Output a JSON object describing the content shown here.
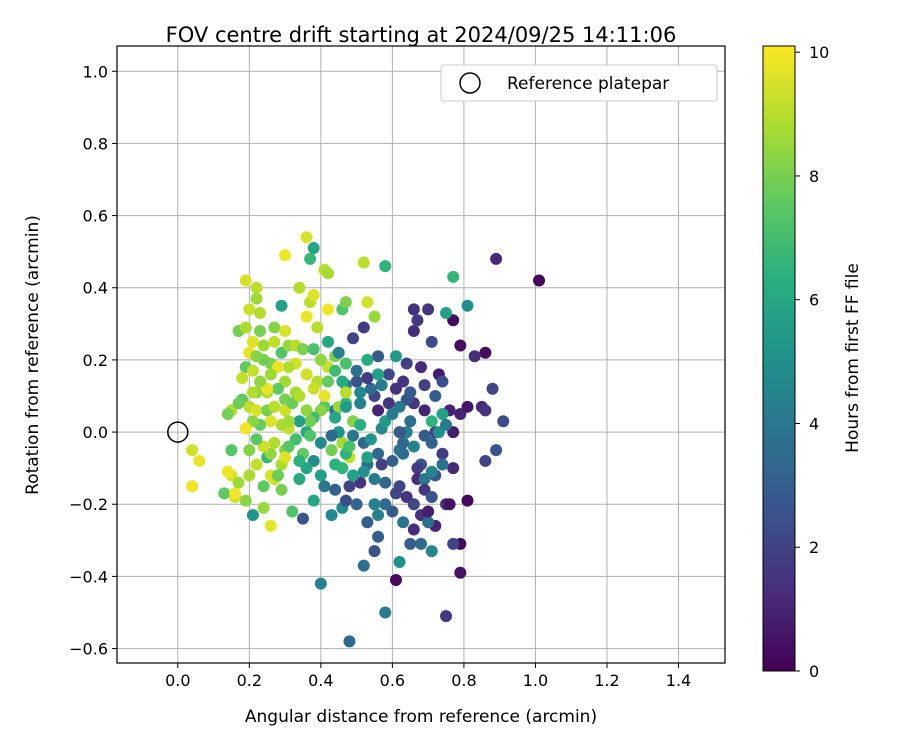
{
  "chart_data": {
    "type": "scatter",
    "title": "FOV centre drift starting at 2024/09/25 14:11:06",
    "xlabel": "Angular distance from reference (arcmin)",
    "ylabel": "Rotation from reference (arcmin)",
    "xlim": [
      -0.17,
      1.53
    ],
    "ylim": [
      -0.64,
      1.07
    ],
    "xticks": [
      "0.0",
      "0.2",
      "0.4",
      "0.6",
      "0.8",
      "1.0",
      "1.2",
      "1.4"
    ],
    "yticks": [
      "−0.6",
      "−0.4",
      "−0.2",
      "0.0",
      "0.2",
      "0.4",
      "0.6",
      "0.8",
      "1.0"
    ],
    "grid": true,
    "legend": {
      "position": "top-right",
      "entries": [
        "Reference platepar"
      ]
    },
    "colorbar": {
      "label": "Hours from first FF file",
      "range": [
        0,
        10.1
      ],
      "ticks": [
        "0",
        "2",
        "4",
        "6",
        "8",
        "10"
      ],
      "colormap": "viridis"
    },
    "reference_point": {
      "x": 0.0,
      "y": 0.0
    },
    "points": [
      [
        1.01,
        0.42,
        0.1
      ],
      [
        0.89,
        0.48,
        1.2
      ],
      [
        0.77,
        0.31,
        0.3
      ],
      [
        0.79,
        0.24,
        0.4
      ],
      [
        0.86,
        0.22,
        0.3
      ],
      [
        0.83,
        0.21,
        1.3
      ],
      [
        0.73,
        0.16,
        0.7
      ],
      [
        0.76,
        0.06,
        1.0
      ],
      [
        0.81,
        0.07,
        0.6
      ],
      [
        0.85,
        0.07,
        1.1
      ],
      [
        0.88,
        0.12,
        2.0
      ],
      [
        0.91,
        0.03,
        2.3
      ],
      [
        0.86,
        0.06,
        1.5
      ],
      [
        0.79,
        0.05,
        1.0
      ],
      [
        0.77,
        0.0,
        0.8
      ],
      [
        0.89,
        -0.05,
        2.6
      ],
      [
        0.86,
        -0.08,
        2.0
      ],
      [
        0.81,
        -0.19,
        0.2
      ],
      [
        0.79,
        -0.31,
        0.2
      ],
      [
        0.79,
        -0.39,
        0.5
      ],
      [
        0.77,
        -0.31,
        2.0
      ],
      [
        0.75,
        -0.51,
        1.6
      ],
      [
        0.61,
        -0.41,
        0.3
      ],
      [
        0.72,
        -0.26,
        1.0
      ],
      [
        0.75,
        -0.2,
        1.4
      ],
      [
        0.68,
        -0.23,
        1.4
      ],
      [
        0.7,
        -0.25,
        3.7
      ],
      [
        0.71,
        -0.33,
        4.6
      ],
      [
        0.68,
        -0.31,
        3.4
      ],
      [
        0.65,
        -0.31,
        3.0
      ],
      [
        0.66,
        -0.27,
        1.3
      ],
      [
        0.72,
        -0.12,
        2.5
      ],
      [
        0.74,
        -0.06,
        1.8
      ],
      [
        0.77,
        -0.1,
        1.1
      ],
      [
        0.76,
        -0.2,
        0.5
      ],
      [
        0.7,
        -0.22,
        0.8
      ],
      [
        0.64,
        -0.18,
        1.5
      ],
      [
        0.61,
        -0.17,
        2.1
      ],
      [
        0.58,
        -0.2,
        3.5
      ],
      [
        0.55,
        -0.2,
        4.4
      ],
      [
        0.56,
        -0.29,
        3.0
      ],
      [
        0.55,
        -0.33,
        2.6
      ],
      [
        0.58,
        -0.5,
        4.1
      ],
      [
        0.62,
        -0.36,
        5.0
      ],
      [
        0.48,
        -0.58,
        3.5
      ],
      [
        0.52,
        -0.37,
        3.6
      ],
      [
        0.4,
        -0.42,
        4.3
      ],
      [
        0.51,
        -0.14,
        1.4
      ],
      [
        0.48,
        -0.15,
        2.0
      ],
      [
        0.46,
        -0.21,
        4.8
      ],
      [
        0.47,
        -0.19,
        2.4
      ],
      [
        0.43,
        -0.23,
        4.6
      ],
      [
        0.38,
        -0.19,
        5.9
      ],
      [
        0.35,
        -0.24,
        2.6
      ],
      [
        0.32,
        -0.22,
        7.3
      ],
      [
        0.29,
        -0.16,
        8.0
      ],
      [
        0.27,
        -0.13,
        9.3
      ],
      [
        0.26,
        -0.12,
        9.5
      ],
      [
        0.24,
        -0.21,
        8.5
      ],
      [
        0.26,
        -0.26,
        9.7
      ],
      [
        0.21,
        -0.23,
        5.2
      ],
      [
        0.19,
        -0.19,
        8.3
      ],
      [
        0.16,
        -0.18,
        9.4
      ],
      [
        0.13,
        -0.17,
        7.6
      ],
      [
        0.16,
        -0.17,
        9.9
      ],
      [
        0.06,
        -0.08,
        9.8
      ],
      [
        0.04,
        -0.05,
        9.4
      ],
      [
        0.04,
        -0.15,
        9.9
      ],
      [
        0.15,
        -0.12,
        9.5
      ],
      [
        0.17,
        -0.14,
        8.6
      ],
      [
        0.2,
        -0.12,
        8.8
      ],
      [
        0.24,
        -0.15,
        7.6
      ],
      [
        0.14,
        -0.11,
        9.9
      ],
      [
        0.15,
        -0.05,
        7.4
      ],
      [
        0.2,
        -0.05,
        8.2
      ],
      [
        0.22,
        -0.09,
        9.2
      ],
      [
        0.25,
        -0.07,
        6.7
      ],
      [
        0.26,
        -0.06,
        8.4
      ],
      [
        0.29,
        -0.09,
        8.8
      ],
      [
        0.3,
        -0.05,
        8.2
      ],
      [
        0.35,
        -0.06,
        7.6
      ],
      [
        0.34,
        -0.13,
        6.1
      ],
      [
        0.4,
        -0.12,
        5.6
      ],
      [
        0.44,
        -0.09,
        6.4
      ],
      [
        0.43,
        -0.05,
        7.9
      ],
      [
        0.46,
        -0.03,
        8.7
      ],
      [
        0.48,
        -0.07,
        9.2
      ],
      [
        0.47,
        -0.06,
        6.5
      ],
      [
        0.45,
        0.0,
        5.1
      ],
      [
        0.49,
        -0.01,
        4.0
      ],
      [
        0.52,
        -0.03,
        3.3
      ],
      [
        0.53,
        -0.09,
        3.7
      ],
      [
        0.53,
        -0.07,
        5.7
      ],
      [
        0.56,
        -0.06,
        3.4
      ],
      [
        0.57,
        -0.09,
        1.9
      ],
      [
        0.6,
        -0.08,
        3.0
      ],
      [
        0.62,
        -0.05,
        3.9
      ],
      [
        0.63,
        -0.03,
        3.3
      ],
      [
        0.64,
        0.0,
        4.3
      ],
      [
        0.65,
        0.03,
        3.6
      ],
      [
        0.68,
        -0.09,
        2.5
      ],
      [
        0.67,
        -0.1,
        1.7
      ],
      [
        0.67,
        -0.13,
        1.3
      ],
      [
        0.69,
        -0.13,
        4.0
      ],
      [
        0.71,
        -0.11,
        4.5
      ],
      [
        0.74,
        -0.09,
        3.8
      ],
      [
        0.72,
        0.0,
        2.0
      ],
      [
        0.71,
        0.03,
        6.5
      ],
      [
        0.74,
        0.05,
        5.8
      ],
      [
        0.69,
        0.06,
        1.0
      ],
      [
        0.66,
        0.08,
        1.5
      ],
      [
        0.64,
        0.09,
        2.6
      ],
      [
        0.62,
        0.07,
        3.9
      ],
      [
        0.59,
        0.08,
        1.6
      ],
      [
        0.56,
        0.06,
        1.0
      ],
      [
        0.55,
        0.1,
        2.2
      ],
      [
        0.54,
        0.12,
        3.5
      ],
      [
        0.53,
        0.15,
        1.8
      ],
      [
        0.5,
        0.14,
        2.6
      ],
      [
        0.5,
        0.17,
        3.7
      ],
      [
        0.51,
        0.11,
        4.6
      ],
      [
        0.47,
        0.13,
        4.1
      ],
      [
        0.46,
        0.14,
        6.2
      ],
      [
        0.47,
        0.08,
        6.6
      ],
      [
        0.44,
        0.06,
        3.8
      ],
      [
        0.41,
        0.07,
        7.5
      ],
      [
        0.4,
        0.06,
        8.3
      ],
      [
        0.38,
        0.04,
        6.9
      ],
      [
        0.37,
        0.03,
        7.9
      ],
      [
        0.36,
        0.0,
        6.1
      ],
      [
        0.34,
        0.03,
        5.7
      ],
      [
        0.31,
        0.01,
        9.2
      ],
      [
        0.29,
        0.02,
        8.8
      ],
      [
        0.26,
        0.03,
        9.6
      ],
      [
        0.23,
        0.02,
        7.7
      ],
      [
        0.21,
        0.03,
        8.3
      ],
      [
        0.19,
        0.01,
        9.9
      ],
      [
        0.15,
        0.06,
        8.9
      ],
      [
        0.14,
        0.05,
        8.0
      ],
      [
        0.18,
        0.09,
        7.5
      ],
      [
        0.2,
        0.07,
        9.1
      ],
      [
        0.22,
        0.11,
        8.3
      ],
      [
        0.25,
        0.11,
        8.9
      ],
      [
        0.27,
        0.07,
        9.5
      ],
      [
        0.3,
        0.09,
        8.0
      ],
      [
        0.33,
        0.11,
        8.7
      ],
      [
        0.36,
        0.16,
        9.4
      ],
      [
        0.39,
        0.14,
        9.0
      ],
      [
        0.42,
        0.18,
        9.2
      ],
      [
        0.44,
        0.21,
        8.0
      ],
      [
        0.42,
        0.25,
        6.0
      ],
      [
        0.45,
        0.22,
        4.3
      ],
      [
        0.49,
        0.26,
        2.0
      ],
      [
        0.52,
        0.29,
        1.7
      ],
      [
        0.55,
        0.32,
        8.5
      ],
      [
        0.56,
        0.21,
        2.9
      ],
      [
        0.59,
        0.16,
        2.2
      ],
      [
        0.63,
        0.14,
        1.6
      ],
      [
        0.61,
        0.21,
        5.5
      ],
      [
        0.64,
        0.19,
        1.9
      ],
      [
        0.66,
        0.28,
        1.3
      ],
      [
        0.66,
        0.34,
        1.4
      ],
      [
        0.67,
        0.31,
        1.7
      ],
      [
        0.7,
        0.34,
        1.5
      ],
      [
        0.71,
        0.25,
        2.3
      ],
      [
        0.68,
        0.18,
        1.2
      ],
      [
        0.75,
        0.33,
        5.7
      ],
      [
        0.81,
        0.35,
        5.0
      ],
      [
        0.77,
        0.43,
        6.6
      ],
      [
        0.58,
        0.46,
        6.5
      ],
      [
        0.52,
        0.47,
        9.1
      ],
      [
        0.46,
        0.34,
        7.3
      ],
      [
        0.41,
        0.45,
        9.0
      ],
      [
        0.42,
        0.44,
        8.7
      ],
      [
        0.37,
        0.48,
        6.7
      ],
      [
        0.38,
        0.51,
        5.9
      ],
      [
        0.36,
        0.54,
        9.5
      ],
      [
        0.3,
        0.49,
        9.9
      ],
      [
        0.29,
        0.35,
        5.7
      ],
      [
        0.34,
        0.4,
        8.9
      ],
      [
        0.37,
        0.36,
        9.1
      ],
      [
        0.38,
        0.38,
        9.6
      ],
      [
        0.36,
        0.32,
        9.8
      ],
      [
        0.39,
        0.29,
        9.0
      ],
      [
        0.42,
        0.34,
        9.9
      ],
      [
        0.47,
        0.36,
        8.1
      ],
      [
        0.53,
        0.36,
        9.4
      ],
      [
        0.22,
        0.4,
        9.1
      ],
      [
        0.19,
        0.42,
        9.5
      ],
      [
        0.22,
        0.37,
        8.6
      ],
      [
        0.2,
        0.34,
        9.3
      ],
      [
        0.23,
        0.33,
        8.9
      ],
      [
        0.17,
        0.28,
        7.9
      ],
      [
        0.19,
        0.29,
        8.8
      ],
      [
        0.23,
        0.28,
        8.0
      ],
      [
        0.27,
        0.29,
        8.2
      ],
      [
        0.3,
        0.28,
        9.5
      ],
      [
        0.24,
        0.24,
        8.6
      ],
      [
        0.2,
        0.22,
        9.8
      ],
      [
        0.19,
        0.18,
        7.6
      ],
      [
        0.21,
        0.17,
        9.2
      ],
      [
        0.26,
        0.19,
        8.1
      ],
      [
        0.29,
        0.22,
        7.3
      ],
      [
        0.31,
        0.24,
        8.5
      ],
      [
        0.33,
        0.24,
        9.0
      ],
      [
        0.35,
        0.23,
        8.1
      ],
      [
        0.33,
        0.19,
        9.4
      ],
      [
        0.3,
        0.14,
        8.7
      ],
      [
        0.28,
        0.12,
        7.6
      ],
      [
        0.25,
        0.12,
        9.8
      ],
      [
        0.23,
        0.14,
        8.4
      ],
      [
        0.21,
        0.11,
        8.9
      ],
      [
        0.18,
        0.15,
        9.2
      ],
      [
        0.17,
        0.08,
        7.8
      ],
      [
        0.22,
        0.06,
        9.5
      ],
      [
        0.25,
        0.06,
        8.0
      ],
      [
        0.27,
        0.07,
        9.0
      ],
      [
        0.3,
        0.06,
        9.4
      ],
      [
        0.32,
        0.08,
        7.8
      ],
      [
        0.34,
        0.1,
        8.9
      ],
      [
        0.36,
        0.06,
        8.4
      ],
      [
        0.38,
        0.12,
        9.3
      ],
      [
        0.41,
        0.1,
        9.7
      ],
      [
        0.45,
        0.07,
        8.5
      ],
      [
        0.47,
        0.11,
        9.0
      ],
      [
        0.49,
        0.03,
        8.2
      ],
      [
        0.48,
        -0.04,
        7.1
      ],
      [
        0.51,
        0.02,
        6.3
      ],
      [
        0.54,
        -0.02,
        5.2
      ],
      [
        0.57,
        0.01,
        4.7
      ],
      [
        0.58,
        0.03,
        5.5
      ],
      [
        0.6,
        0.05,
        4.1
      ],
      [
        0.62,
        0.0,
        2.8
      ],
      [
        0.63,
        -0.06,
        3.6
      ],
      [
        0.66,
        -0.04,
        4.5
      ],
      [
        0.69,
        -0.01,
        2.9
      ],
      [
        0.71,
        -0.03,
        3.2
      ],
      [
        0.73,
        0.0,
        5.0
      ],
      [
        0.75,
        0.02,
        4.1
      ],
      [
        0.62,
        -0.15,
        2.1
      ],
      [
        0.58,
        -0.14,
        3.3
      ],
      [
        0.55,
        -0.13,
        4.0
      ],
      [
        0.52,
        -0.11,
        5.1
      ],
      [
        0.49,
        -0.12,
        5.8
      ],
      [
        0.46,
        -0.1,
        6.6
      ],
      [
        0.44,
        -0.16,
        3.1
      ],
      [
        0.41,
        -0.15,
        3.9
      ],
      [
        0.38,
        -0.08,
        4.9
      ],
      [
        0.36,
        -0.1,
        6.0
      ],
      [
        0.33,
        -0.02,
        7.0
      ],
      [
        0.31,
        -0.04,
        7.4
      ],
      [
        0.4,
        -0.03,
        4.7
      ],
      [
        0.43,
        -0.01,
        3.5
      ],
      [
        0.56,
        -0.23,
        4.4
      ],
      [
        0.6,
        -0.22,
        2.9
      ],
      [
        0.63,
        -0.25,
        3.9
      ],
      [
        0.66,
        -0.2,
        2.2
      ],
      [
        0.69,
        -0.16,
        1.6
      ],
      [
        0.71,
        -0.18,
        2.6
      ],
      [
        0.53,
        -0.25,
        3.0
      ],
      [
        0.5,
        -0.2,
        3.3
      ],
      [
        0.61,
        0.12,
        1.4
      ],
      [
        0.65,
        0.11,
        2.9
      ],
      [
        0.69,
        0.13,
        1.9
      ],
      [
        0.72,
        0.1,
        3.0
      ],
      [
        0.74,
        0.14,
        2.4
      ],
      [
        0.57,
        0.13,
        4.2
      ],
      [
        0.56,
        0.16,
        5.6
      ],
      [
        0.53,
        0.2,
        6.2
      ],
      [
        0.47,
        0.19,
        7.1
      ],
      [
        0.44,
        0.17,
        6.9
      ],
      [
        0.42,
        0.14,
        7.7
      ],
      [
        0.4,
        0.2,
        8.4
      ],
      [
        0.38,
        0.23,
        7.1
      ],
      [
        0.31,
        0.18,
        8.9
      ],
      [
        0.28,
        0.18,
        9.8
      ],
      [
        0.26,
        0.16,
        8.6
      ],
      [
        0.24,
        0.2,
        7.9
      ],
      [
        0.22,
        0.21,
        8.2
      ],
      [
        0.21,
        0.25,
        9.6
      ],
      [
        0.27,
        0.25,
        9.1
      ],
      [
        0.31,
        0.03,
        8.7
      ],
      [
        0.27,
        -0.03,
        8.9
      ],
      [
        0.24,
        -0.04,
        9.3
      ],
      [
        0.22,
        -0.02,
        7.5
      ],
      [
        0.28,
        -0.12,
        7.8
      ],
      [
        0.3,
        -0.07,
        9.6
      ],
      [
        0.34,
        -0.08,
        6.4
      ],
      [
        0.47,
        0.07,
        5.4
      ],
      [
        0.51,
        0.08,
        4.4
      ],
      [
        0.44,
        0.04,
        5.9
      ],
      [
        0.37,
        -0.01,
        7.3
      ]
    ]
  }
}
